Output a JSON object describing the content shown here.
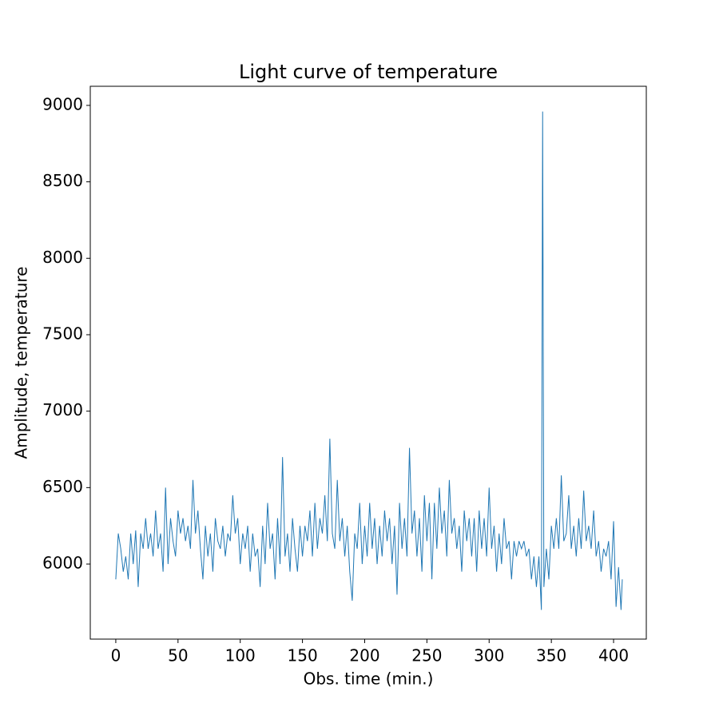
{
  "chart_data": {
    "type": "line",
    "title": "Light curve of temperature",
    "x_label": "Obs. time (min.)",
    "y_label": "Amplitude, temperature",
    "xlim": [
      -20.5,
      426.3
    ],
    "ylim": [
      5509,
      9125
    ],
    "xticks": [
      0,
      50,
      100,
      150,
      200,
      250,
      300,
      350,
      400
    ],
    "yticks": [
      6000,
      6500,
      7000,
      7500,
      8000,
      8500,
      9000
    ],
    "grid": false,
    "series": [
      {
        "color": "#1f77b4",
        "x": [
          0,
          2,
          4,
          6,
          8,
          10,
          12,
          14,
          16,
          18,
          20,
          22,
          24,
          26,
          28,
          30,
          32,
          34,
          36,
          38,
          40,
          42,
          44,
          46,
          48,
          50,
          52,
          54,
          56,
          58,
          60,
          62,
          64,
          66,
          68,
          70,
          72,
          74,
          76,
          78,
          80,
          82,
          84,
          86,
          88,
          90,
          92,
          94,
          96,
          98,
          100,
          102,
          104,
          106,
          108,
          110,
          112,
          114,
          116,
          118,
          120,
          122,
          124,
          126,
          128,
          130,
          132,
          134,
          136,
          138,
          140,
          142,
          144,
          146,
          148,
          150,
          152,
          154,
          156,
          158,
          160,
          162,
          164,
          166,
          168,
          170,
          172,
          174,
          176,
          178,
          180,
          182,
          184,
          186,
          188,
          190,
          192,
          194,
          196,
          198,
          200,
          202,
          204,
          206,
          208,
          210,
          212,
          214,
          216,
          218,
          220,
          222,
          224,
          226,
          228,
          230,
          232,
          234,
          236,
          238,
          240,
          242,
          244,
          246,
          248,
          250,
          252,
          254,
          256,
          258,
          260,
          262,
          264,
          266,
          268,
          270,
          272,
          274,
          276,
          278,
          280,
          282,
          284,
          286,
          288,
          290,
          292,
          294,
          296,
          298,
          300,
          302,
          304,
          306,
          308,
          310,
          312,
          314,
          316,
          318,
          320,
          322,
          324,
          326,
          328,
          330,
          332,
          334,
          336,
          338,
          340,
          342,
          343,
          344,
          346,
          348,
          350,
          352,
          354,
          356,
          358,
          360,
          362,
          364,
          366,
          368,
          370,
          372,
          374,
          376,
          378,
          380,
          382,
          384,
          386,
          388,
          390,
          392,
          394,
          396,
          398,
          400,
          402,
          404,
          406,
          407
        ],
        "values": [
          5900,
          6200,
          6100,
          5950,
          6050,
          5900,
          6200,
          6000,
          6220,
          5850,
          6200,
          6100,
          6300,
          6100,
          6200,
          6050,
          6350,
          6100,
          6200,
          5950,
          6500,
          6000,
          6300,
          6150,
          6050,
          6350,
          6200,
          6300,
          6150,
          6250,
          6100,
          6550,
          6200,
          6350,
          6100,
          5900,
          6250,
          6050,
          6200,
          5950,
          6300,
          6150,
          6100,
          6250,
          6050,
          6200,
          6150,
          6450,
          6200,
          6300,
          6000,
          6200,
          6100,
          6250,
          5950,
          6200,
          6050,
          6100,
          5850,
          6250,
          6000,
          6400,
          6100,
          6200,
          5900,
          6300,
          6000,
          6700,
          6050,
          6200,
          5950,
          6300,
          6100,
          5950,
          6250,
          6050,
          6250,
          6150,
          6350,
          6050,
          6400,
          6100,
          6300,
          6200,
          6450,
          6150,
          6820,
          6200,
          6100,
          6550,
          6150,
          6300,
          6050,
          6250,
          5950,
          5760,
          6200,
          6100,
          6400,
          6000,
          6250,
          6050,
          6400,
          6100,
          6300,
          6000,
          6250,
          6050,
          6350,
          6150,
          6300,
          6000,
          6250,
          5800,
          6400,
          6100,
          6300,
          6050,
          6760,
          6200,
          6350,
          6050,
          6300,
          5950,
          6450,
          6150,
          6400,
          5900,
          6400,
          6100,
          6500,
          6200,
          6350,
          6050,
          6550,
          6200,
          6300,
          6100,
          6250,
          5950,
          6350,
          6150,
          6300,
          6050,
          6300,
          5950,
          6350,
          6100,
          6300,
          6050,
          6500,
          6100,
          6250,
          5950,
          6200,
          6000,
          6300,
          6100,
          6150,
          5900,
          6150,
          6050,
          6150,
          6100,
          6150,
          6050,
          6100,
          5900,
          6050,
          5850,
          6050,
          5700,
          8960,
          5850,
          6100,
          5900,
          6250,
          6100,
          6300,
          6100,
          6580,
          6150,
          6200,
          6450,
          6100,
          6250,
          6050,
          6300,
          6100,
          6480,
          6150,
          6250,
          6100,
          6350,
          6050,
          6150,
          5950,
          6100,
          6050,
          6150,
          5900,
          6280,
          5720,
          5980,
          5700,
          5900
        ]
      }
    ]
  }
}
